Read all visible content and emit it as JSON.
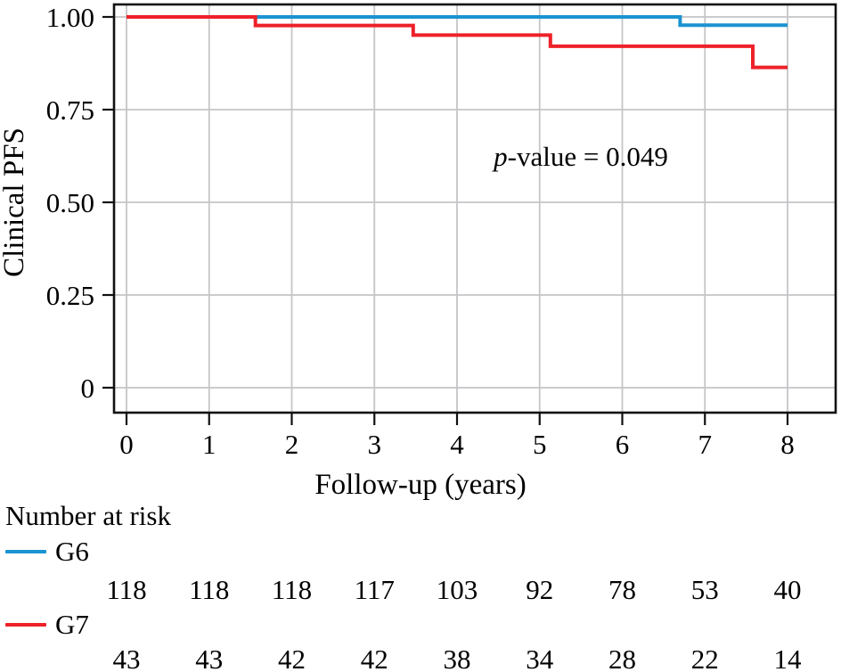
{
  "figure": {
    "y_axis_title": "Clinical PFS",
    "x_axis_title": "Follow-up (years)",
    "annotation_italic": "p",
    "annotation_rest": "-value = 0.049"
  },
  "colors": {
    "g6_blue": "#1b93d1",
    "g7_red": "#ee2129",
    "grid": "#c5c5c8",
    "axis": "#111111"
  },
  "chart_data": {
    "type": "line",
    "subtype": "kaplan-meier-step",
    "title": "",
    "xlabel": "Follow-up (years)",
    "ylabel": "Clinical PFS",
    "annotation": "p-value = 0.049",
    "xlim": [
      0,
      8
    ],
    "ylim": [
      0,
      1.0
    ],
    "x_ticks": [
      0,
      1,
      2,
      3,
      4,
      5,
      6,
      7,
      8
    ],
    "x_tick_labels": [
      "0",
      "1",
      "2",
      "3",
      "4",
      "5",
      "6",
      "7",
      "8"
    ],
    "y_ticks": [
      1.0,
      0.75,
      0.5,
      0.25,
      0
    ],
    "y_tick_labels": [
      "1.00",
      "0.75",
      "0.50",
      "0.25",
      "0"
    ],
    "grid": true,
    "legend_position": "below-left",
    "series": [
      {
        "name": "G6",
        "color": "#1b93d1",
        "steps": [
          [
            0,
            1.0
          ],
          [
            6.7,
            1.0
          ],
          [
            6.7,
            0.978
          ],
          [
            8,
            0.978
          ]
        ]
      },
      {
        "name": "G7",
        "color": "#ee2129",
        "steps": [
          [
            0,
            1.0
          ],
          [
            1.56,
            1.0
          ],
          [
            1.56,
            0.977
          ],
          [
            3.47,
            0.977
          ],
          [
            3.47,
            0.951
          ],
          [
            5.13,
            0.951
          ],
          [
            5.13,
            0.921
          ],
          [
            7.58,
            0.921
          ],
          [
            7.58,
            0.864
          ],
          [
            8,
            0.864
          ]
        ]
      }
    ],
    "risk_table": {
      "header": "Number at risk",
      "time_points": [
        0,
        1,
        2,
        3,
        4,
        5,
        6,
        7,
        8
      ],
      "groups": [
        {
          "name": "G6",
          "color": "#1b93d1",
          "counts": [
            118,
            118,
            118,
            117,
            103,
            92,
            78,
            53,
            40
          ]
        },
        {
          "name": "G7",
          "color": "#ee2129",
          "counts": [
            43,
            43,
            42,
            42,
            38,
            34,
            28,
            22,
            14
          ]
        }
      ]
    }
  }
}
